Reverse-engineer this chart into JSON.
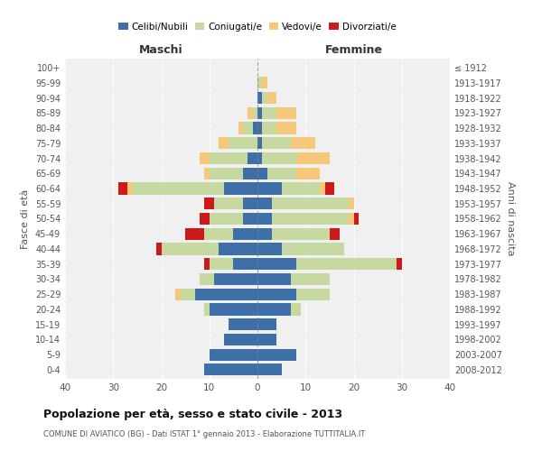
{
  "age_groups": [
    "0-4",
    "5-9",
    "10-14",
    "15-19",
    "20-24",
    "25-29",
    "30-34",
    "35-39",
    "40-44",
    "45-49",
    "50-54",
    "55-59",
    "60-64",
    "65-69",
    "70-74",
    "75-79",
    "80-84",
    "85-89",
    "90-94",
    "95-99",
    "100+"
  ],
  "birth_years": [
    "2008-2012",
    "2003-2007",
    "1998-2002",
    "1993-1997",
    "1988-1992",
    "1983-1987",
    "1978-1982",
    "1973-1977",
    "1968-1972",
    "1963-1967",
    "1958-1962",
    "1953-1957",
    "1948-1952",
    "1943-1947",
    "1938-1942",
    "1933-1937",
    "1928-1932",
    "1923-1927",
    "1918-1922",
    "1913-1917",
    "≤ 1912"
  ],
  "colors": {
    "celibi": "#3e6fa8",
    "coniugati": "#c5d9a0",
    "vedovi": "#f5c87a",
    "divorziati": "#cc1a1a"
  },
  "maschi": {
    "celibi": [
      11,
      10,
      7,
      6,
      10,
      13,
      9,
      5,
      8,
      5,
      3,
      3,
      7,
      3,
      2,
      0,
      1,
      0,
      0,
      0,
      0
    ],
    "coniugati": [
      0,
      0,
      0,
      0,
      1,
      3,
      3,
      5,
      12,
      6,
      7,
      6,
      19,
      7,
      8,
      6,
      2,
      1,
      0,
      0,
      0
    ],
    "vedovi": [
      0,
      0,
      0,
      0,
      0,
      1,
      0,
      0,
      0,
      0,
      0,
      0,
      1,
      1,
      2,
      2,
      1,
      1,
      0,
      0,
      0
    ],
    "divorziati": [
      0,
      0,
      0,
      0,
      0,
      0,
      0,
      1,
      1,
      4,
      2,
      2,
      2,
      0,
      0,
      0,
      0,
      0,
      0,
      0,
      0
    ]
  },
  "femmine": {
    "celibi": [
      5,
      8,
      4,
      4,
      7,
      8,
      7,
      8,
      5,
      3,
      3,
      3,
      5,
      2,
      1,
      1,
      1,
      1,
      1,
      0,
      0
    ],
    "coniugati": [
      0,
      0,
      0,
      0,
      2,
      7,
      8,
      21,
      13,
      12,
      16,
      16,
      8,
      6,
      7,
      6,
      3,
      3,
      1,
      1,
      0
    ],
    "vedovi": [
      0,
      0,
      0,
      0,
      0,
      0,
      0,
      0,
      0,
      0,
      1,
      1,
      1,
      5,
      7,
      5,
      4,
      4,
      2,
      1,
      0
    ],
    "divorziati": [
      0,
      0,
      0,
      0,
      0,
      0,
      0,
      1,
      0,
      2,
      1,
      0,
      2,
      0,
      0,
      0,
      0,
      0,
      0,
      0,
      0
    ]
  },
  "xlim": 40,
  "title": "Popolazione per età, sesso e stato civile - 2013",
  "subtitle": "COMUNE DI AVIATICO (BG) - Dati ISTAT 1° gennaio 2013 - Elaborazione TUTTITALIA.IT",
  "ylabel": "Fasce di età",
  "ylabel2": "Anni di nascita",
  "xlabel_maschi": "Maschi",
  "xlabel_femmine": "Femmine",
  "legend_labels": [
    "Celibi/Nubili",
    "Coniugati/e",
    "Vedovi/e",
    "Divorziati/e"
  ],
  "background_color": "#f0f0f0",
  "grid_color": "#ffffff",
  "text_color": "#555555"
}
